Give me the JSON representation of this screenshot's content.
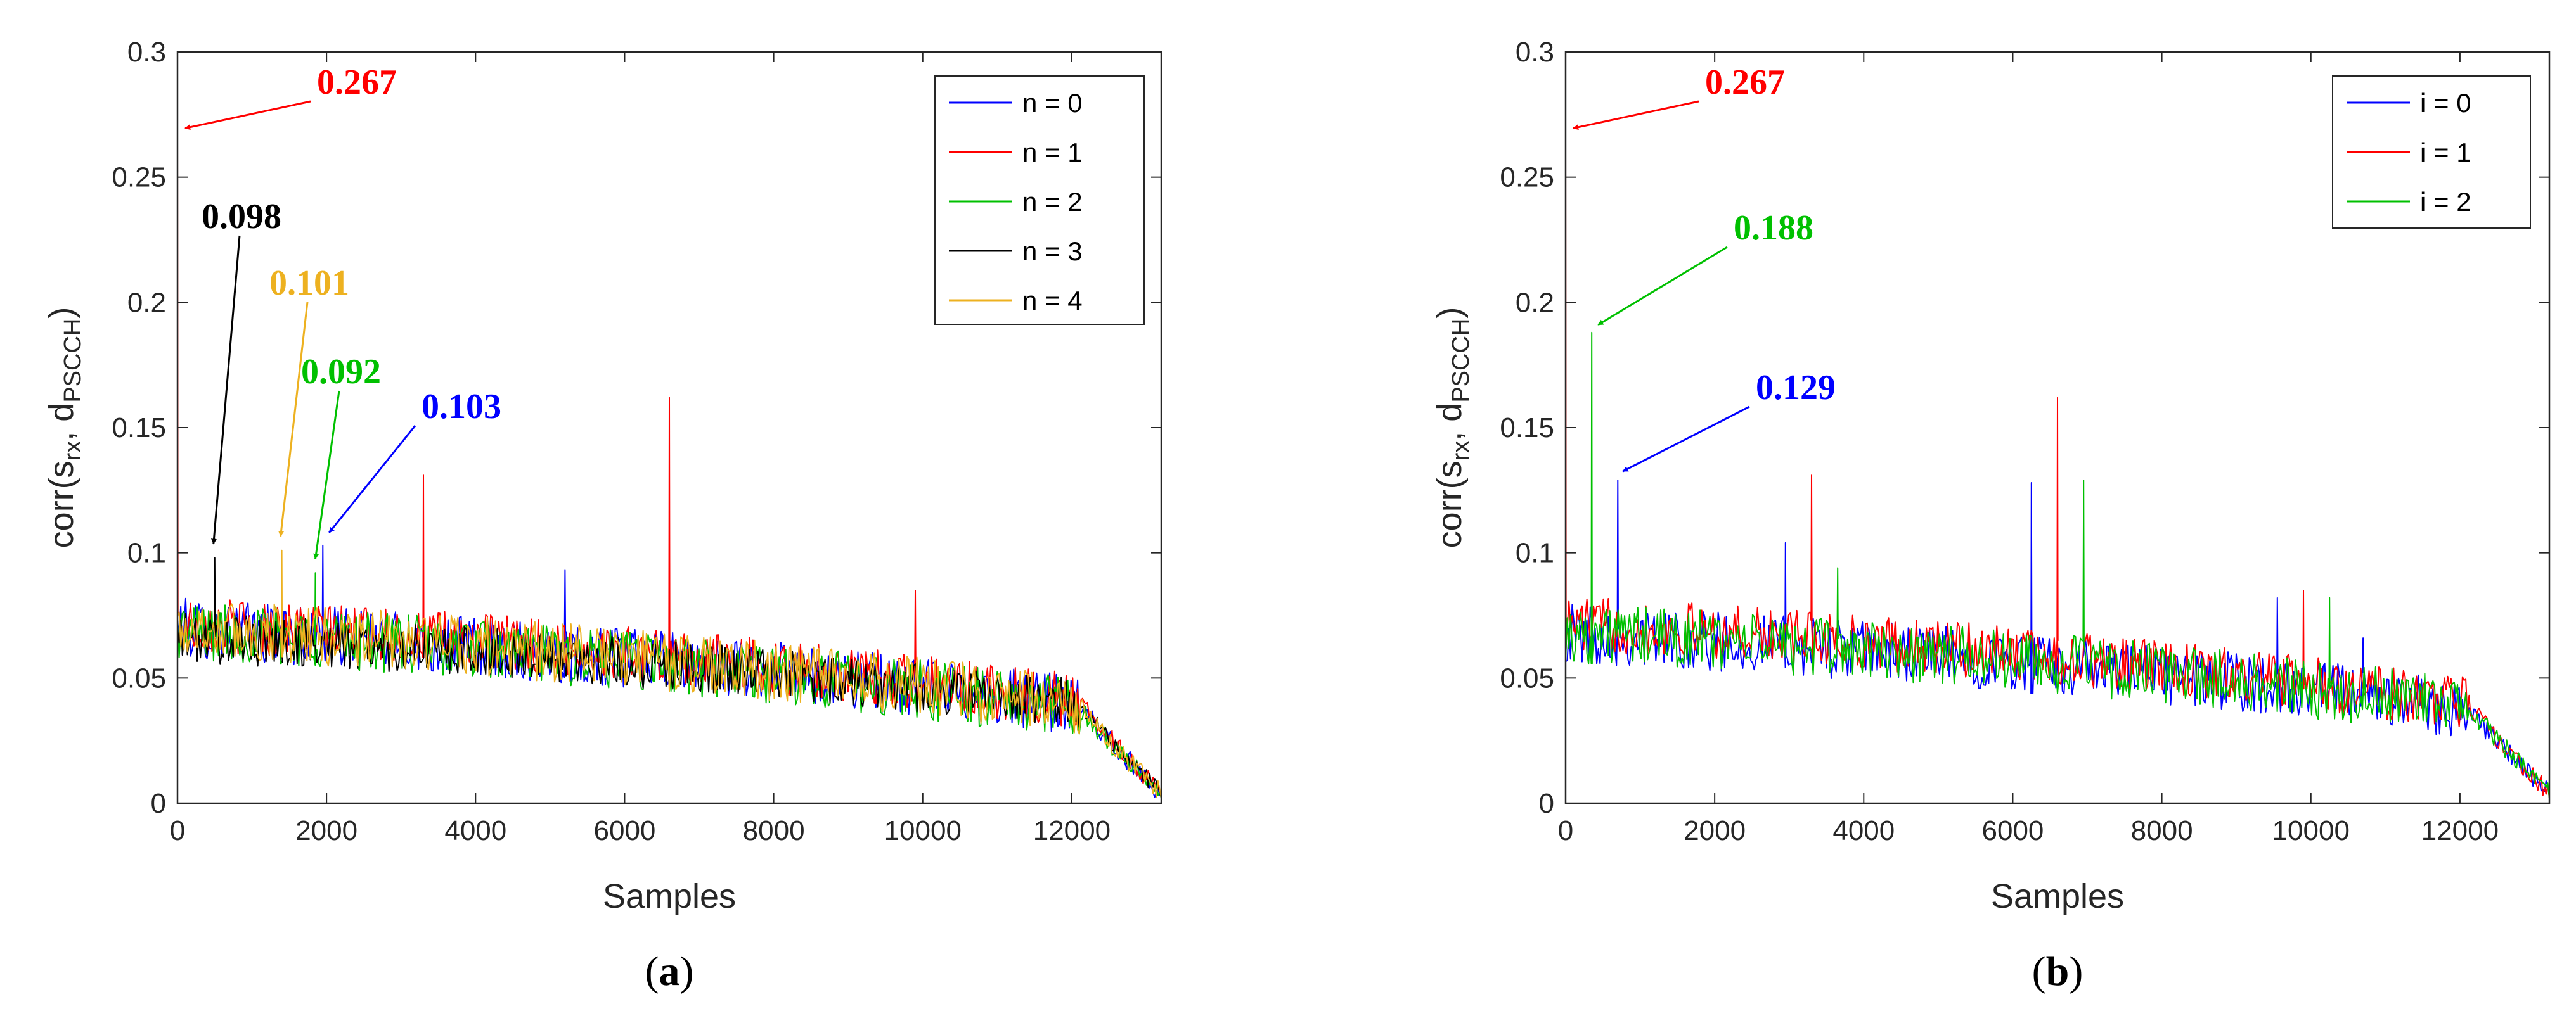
{
  "chart_data": [
    {
      "type": "line",
      "panel_label": "a",
      "title": "",
      "xlabel": "Samples",
      "ylabel": "corr(s_rx, d_PSCCH)",
      "ylabel_parts": {
        "pre": "corr(s",
        "sub1": "rx",
        "mid": ", d",
        "sub2": "PSCCH",
        "post": ")"
      },
      "xlim": [
        0,
        13200
      ],
      "ylim": [
        0,
        0.3
      ],
      "xticks": [
        0,
        2000,
        4000,
        6000,
        8000,
        10000,
        12000
      ],
      "yticks": [
        0,
        0.05,
        0.1,
        0.15,
        0.2,
        0.25,
        0.3
      ],
      "xtick_labels": [
        "0",
        "2000",
        "4000",
        "6000",
        "8000",
        "10000",
        "12000"
      ],
      "ytick_labels": [
        "0",
        "0.05",
        "0.1",
        "0.15",
        "0.2",
        "0.25",
        "0.3"
      ],
      "grid": false,
      "legend_position": "top-right",
      "series": [
        {
          "name": "n = 0",
          "color": "#0000ff",
          "start": 0.07,
          "end_before_drop": 0.035,
          "noise": 0.012,
          "spikes": [
            [
              1950,
              0.103
            ],
            [
              5200,
              0.093
            ]
          ]
        },
        {
          "name": "n = 1",
          "color": "#ff0000",
          "start": 0.072,
          "end_before_drop": 0.037,
          "noise": 0.011,
          "spikes": [
            [
              0,
              0.267
            ],
            [
              3300,
              0.131
            ],
            [
              6600,
              0.162
            ],
            [
              9900,
              0.085
            ]
          ]
        },
        {
          "name": "n = 2",
          "color": "#00c000",
          "start": 0.069,
          "end_before_drop": 0.034,
          "noise": 0.012,
          "spikes": [
            [
              1850,
              0.092
            ]
          ]
        },
        {
          "name": "n = 3",
          "color": "#000000",
          "start": 0.066,
          "end_before_drop": 0.036,
          "noise": 0.01,
          "spikes": [
            [
              500,
              0.098
            ]
          ]
        },
        {
          "name": "n = 4",
          "color": "#edb120",
          "start": 0.07,
          "end_before_drop": 0.035,
          "noise": 0.012,
          "spikes": [
            [
              1400,
              0.101
            ]
          ]
        }
      ],
      "annotations": [
        {
          "text": "0.267",
          "color": "#ff0000",
          "x": 0,
          "y": 0.267
        },
        {
          "text": "0.098",
          "color": "#000000",
          "x": 500,
          "y": 0.098
        },
        {
          "text": "0.101",
          "color": "#edb120",
          "x": 1400,
          "y": 0.101
        },
        {
          "text": "0.092",
          "color": "#00c000",
          "x": 1850,
          "y": 0.092
        },
        {
          "text": "0.103",
          "color": "#0000ff",
          "x": 1950,
          "y": 0.103
        }
      ]
    },
    {
      "type": "line",
      "panel_label": "b",
      "title": "",
      "xlabel": "Samples",
      "ylabel": "corr(s_rx, d_PSCCH)",
      "ylabel_parts": {
        "pre": "corr(s",
        "sub1": "rx",
        "mid": ", d",
        "sub2": "PSCCH",
        "post": ")"
      },
      "xlim": [
        0,
        13200
      ],
      "ylim": [
        0,
        0.3
      ],
      "xticks": [
        0,
        2000,
        4000,
        6000,
        8000,
        10000,
        12000
      ],
      "yticks": [
        0,
        0.05,
        0.1,
        0.15,
        0.2,
        0.25,
        0.3
      ],
      "xtick_labels": [
        "0",
        "2000",
        "4000",
        "6000",
        "8000",
        "10000",
        "12000"
      ],
      "ytick_labels": [
        "0",
        "0.05",
        "0.1",
        "0.15",
        "0.2",
        "0.25",
        "0.3"
      ],
      "grid": false,
      "legend_position": "top-right",
      "series": [
        {
          "name": "i = 0",
          "color": "#0000ff",
          "start": 0.068,
          "end_before_drop": 0.034,
          "noise": 0.012,
          "spikes": [
            [
              700,
              0.129
            ],
            [
              2950,
              0.104
            ],
            [
              6250,
              0.128
            ],
            [
              9550,
              0.082
            ],
            [
              10700,
              0.066
            ]
          ]
        },
        {
          "name": "i = 1",
          "color": "#ff0000",
          "start": 0.072,
          "end_before_drop": 0.036,
          "noise": 0.011,
          "spikes": [
            [
              0,
              0.267
            ],
            [
              3300,
              0.131
            ],
            [
              6600,
              0.162
            ],
            [
              9900,
              0.085
            ]
          ]
        },
        {
          "name": "i = 2",
          "color": "#00c000",
          "start": 0.068,
          "end_before_drop": 0.035,
          "noise": 0.012,
          "spikes": [
            [
              350,
              0.188
            ],
            [
              3650,
              0.094
            ],
            [
              6950,
              0.129
            ],
            [
              10250,
              0.082
            ]
          ]
        }
      ],
      "annotations": [
        {
          "text": "0.267",
          "color": "#ff0000",
          "x": 0,
          "y": 0.267
        },
        {
          "text": "0.188",
          "color": "#00c000",
          "x": 350,
          "y": 0.188
        },
        {
          "text": "0.129",
          "color": "#0000ff",
          "x": 700,
          "y": 0.129
        }
      ]
    }
  ]
}
